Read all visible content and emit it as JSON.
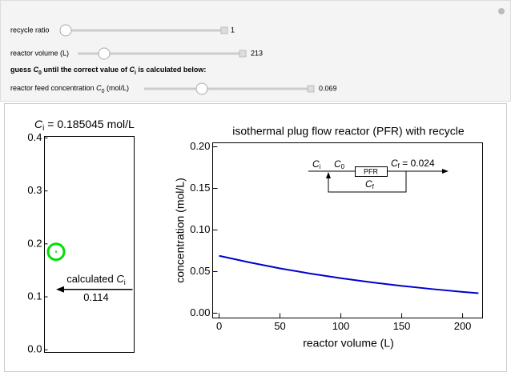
{
  "controls": [
    {
      "label": "recycle ratio",
      "value": 1
    },
    {
      "label": "reactor volume (L)",
      "value": 213
    },
    {
      "label_parts": [
        "reactor feed concentration ",
        "C",
        "0",
        " (mol/L)"
      ],
      "value": 0.069
    }
  ],
  "instruction": [
    "guess ",
    "C",
    "0",
    " until the correct value of ",
    "C",
    "i",
    " is calculated below:"
  ],
  "chart_data": [
    {
      "type": "gauge",
      "title": [
        "C",
        "i",
        " = 0.185045 mol/L"
      ],
      "values": [
        0.185045
      ],
      "color": "#00e000",
      "ylim": [
        -0.005,
        0.403
      ],
      "yticks": [
        {
          "value": 0,
          "label": "0.0"
        },
        0.1,
        0.2,
        0.3,
        0.4
      ],
      "annotation": {
        "text": [
          "calculated ",
          "C",
          "i"
        ],
        "value": 0.114
      }
    },
    {
      "type": "line",
      "title": "isothermal plug flow reactor (PFR) with recycle",
      "xlabel": "reactor volume (L)",
      "ylabel": "concentration  (mol/L)",
      "x": [
        0,
        25,
        50,
        75,
        100,
        125,
        150,
        175,
        200,
        213
      ],
      "values": [
        0.069,
        0.061,
        0.0538,
        0.0476,
        0.042,
        0.0371,
        0.0328,
        0.029,
        0.0256,
        0.024
      ],
      "color": "#0000cc",
      "xlim": [
        -5.3,
        216.4
      ],
      "xticks": [
        0,
        50,
        100,
        150,
        200
      ],
      "ylim": [
        -0.0058,
        0.2048
      ],
      "yticks": [
        {
          "value": 0,
          "label": "0.00"
        },
        0.05,
        {
          "value": 0.1,
          "label": "0.10"
        },
        0.15,
        {
          "value": 0.2,
          "label": "0.20"
        }
      ],
      "diagram": {
        "labels": [
          [
            "C",
            "i"
          ],
          [
            "C",
            "0"
          ],
          "PFR",
          [
            "C",
            "f",
            " = 0.024"
          ],
          [
            "C",
            "f"
          ]
        ]
      }
    }
  ]
}
